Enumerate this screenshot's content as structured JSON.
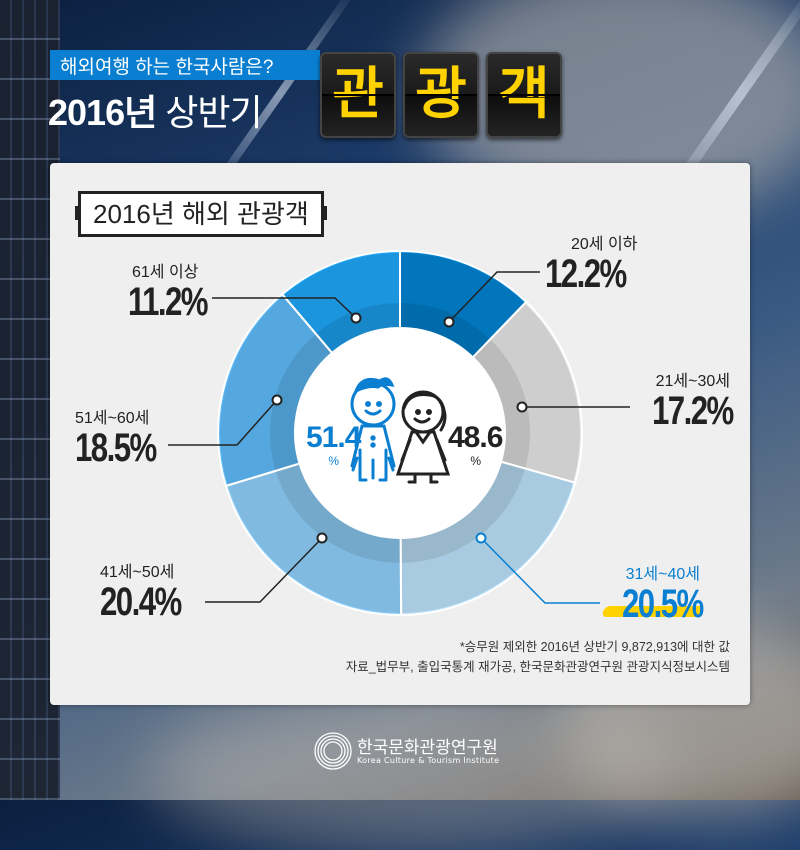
{
  "header": {
    "subtitle": "해외여행 하는 한국사람은?",
    "title_year": "2016년",
    "title_period": "상반기",
    "flip_chars": [
      "관",
      "광",
      "객"
    ],
    "flip_color": "#ffd200"
  },
  "panel": {
    "title": "2016년 해외 관광객"
  },
  "gender": {
    "male": {
      "value": "51.4",
      "unit": "%",
      "color": "#0a7fd1"
    },
    "female": {
      "value": "48.6",
      "unit": "%",
      "color": "#222222"
    }
  },
  "notes": {
    "footnote": "*승무원 제외한 2016년 상반기 9,872,913에 대한 값",
    "source": "자료_법무부, 출입국통계 재가공, 한국문화관광연구원 관광지식정보시스템"
  },
  "logo": {
    "name_ko": "한국문화관광연구원",
    "name_en": "Korea Culture & Tourism Institute"
  },
  "chart_data": {
    "type": "pie",
    "subtype": "donut",
    "title": "2016년 해외 관광객",
    "categories": [
      "20세 이하",
      "21세~30세",
      "31세~40세",
      "41세~50세",
      "51세~60세",
      "61세 이상"
    ],
    "values": [
      12.2,
      17.2,
      20.5,
      20.4,
      18.5,
      11.2
    ],
    "labels": [
      "12.2%",
      "17.2%",
      "20.5%",
      "20.4%",
      "18.5%",
      "11.2%"
    ],
    "colors": [
      "#0284d2",
      "#e6e6e6",
      "#bde3fb",
      "#8fd0fb",
      "#5fbcf9",
      "#1fa6f7"
    ],
    "highlight": "31세~40세",
    "start_angle": "12 o'clock, clockwise",
    "center": {
      "male_pct": 51.4,
      "female_pct": 48.6
    },
    "note": "*승무원 제외한 2016년 상반기 9,872,913에 대한 값"
  }
}
